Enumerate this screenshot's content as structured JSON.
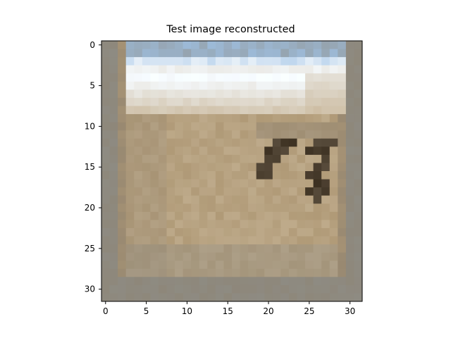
{
  "chart_data": {
    "type": "heatmap",
    "title": "Test image reconstructed",
    "xlabel": "",
    "ylabel": "",
    "xlim": [
      -0.5,
      31.5
    ],
    "ylim": [
      31.5,
      -0.5
    ],
    "image_size": [
      32,
      32
    ],
    "x_ticks": [
      0,
      5,
      10,
      15,
      20,
      25,
      30
    ],
    "y_ticks": [
      0,
      5,
      10,
      15,
      20,
      25,
      30
    ],
    "grid": false,
    "legend": "none",
    "colors": {
      "frame": "#000000",
      "background": "#ffffff",
      "sky_bright": "#f4f8fb",
      "sky_blue": "#9fc2e6",
      "sand_light": "#c9b79a",
      "sand_mid": "#b09a77",
      "sand_dark": "#8f826f",
      "gray_border": "#8e8b82",
      "dark_patch": "#3d3122"
    }
  }
}
